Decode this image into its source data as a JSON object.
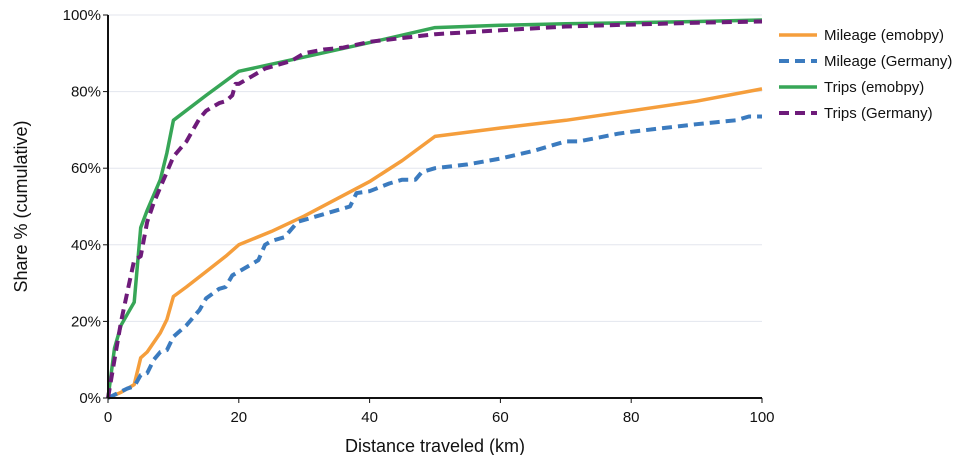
{
  "chart_data": {
    "type": "line",
    "title": "",
    "xlabel": "Distance traveled (km)",
    "ylabel": "Share % (cumulative)",
    "xlim": [
      0,
      100
    ],
    "ylim": [
      0,
      100
    ],
    "xticks": [
      0,
      20,
      40,
      60,
      80,
      100
    ],
    "xtick_labels": [
      "0",
      "20",
      "40",
      "60",
      "80",
      "100"
    ],
    "yticks": [
      0,
      20,
      40,
      60,
      80,
      100
    ],
    "ytick_labels": [
      "0%",
      "20%",
      "40%",
      "60%",
      "80%",
      "100%"
    ],
    "grid": "horizontal",
    "legend_position": "top-right, outside plot",
    "series": [
      {
        "name": "Mileage (emobpy)",
        "color": "#f59e3c",
        "dash": "solid",
        "points": [
          [
            0,
            0
          ],
          [
            2,
            1.5
          ],
          [
            4,
            3.5
          ],
          [
            5,
            10.5
          ],
          [
            6,
            12
          ],
          [
            8,
            17
          ],
          [
            9,
            20.5
          ],
          [
            10,
            26.5
          ],
          [
            12,
            29
          ],
          [
            15,
            33
          ],
          [
            18,
            37
          ],
          [
            20,
            40
          ],
          [
            25,
            43.5
          ],
          [
            30,
            47.5
          ],
          [
            35,
            52
          ],
          [
            40,
            56.5
          ],
          [
            45,
            62
          ],
          [
            50,
            68.3
          ],
          [
            60,
            70.5
          ],
          [
            70,
            72.5
          ],
          [
            80,
            75
          ],
          [
            90,
            77.5
          ],
          [
            100,
            80.7
          ]
        ]
      },
      {
        "name": "Mileage (Germany)",
        "color": "#3b7bbf",
        "dash": "dashed",
        "points": [
          [
            0,
            0
          ],
          [
            3,
            2.5
          ],
          [
            4,
            3
          ],
          [
            5,
            6
          ],
          [
            6,
            6.5
          ],
          [
            7,
            10
          ],
          [
            8,
            12
          ],
          [
            9,
            12.5
          ],
          [
            10,
            16
          ],
          [
            12,
            19
          ],
          [
            13,
            21
          ],
          [
            14,
            23
          ],
          [
            15,
            26
          ],
          [
            17,
            28.5
          ],
          [
            18,
            29
          ],
          [
            19,
            32
          ],
          [
            20,
            33
          ],
          [
            22,
            35
          ],
          [
            23,
            36
          ],
          [
            24,
            40
          ],
          [
            25,
            41
          ],
          [
            27,
            42
          ],
          [
            29,
            46
          ],
          [
            31,
            47
          ],
          [
            33,
            48
          ],
          [
            35,
            49
          ],
          [
            37,
            50
          ],
          [
            38,
            53.5
          ],
          [
            40,
            54
          ],
          [
            43,
            56
          ],
          [
            45,
            57
          ],
          [
            47,
            57
          ],
          [
            48,
            59
          ],
          [
            50,
            60
          ],
          [
            55,
            61
          ],
          [
            60,
            62.5
          ],
          [
            65,
            64.5
          ],
          [
            68,
            66
          ],
          [
            70,
            67
          ],
          [
            72,
            67
          ],
          [
            75,
            68
          ],
          [
            78,
            69
          ],
          [
            80,
            69.5
          ],
          [
            85,
            70.5
          ],
          [
            90,
            71.5
          ],
          [
            93,
            72
          ],
          [
            96,
            72.5
          ],
          [
            98,
            73.5
          ],
          [
            100,
            73.5
          ]
        ]
      },
      {
        "name": "Trips (emobpy)",
        "color": "#37a657",
        "dash": "solid",
        "points": [
          [
            0,
            0
          ],
          [
            1,
            13
          ],
          [
            2,
            19
          ],
          [
            3,
            22
          ],
          [
            4,
            25
          ],
          [
            5,
            44.5
          ],
          [
            6,
            49
          ],
          [
            8,
            57
          ],
          [
            9,
            64
          ],
          [
            10,
            72.5
          ],
          [
            15,
            79
          ],
          [
            20,
            85.3
          ],
          [
            30,
            89
          ],
          [
            40,
            92.8
          ],
          [
            50,
            96.7
          ],
          [
            60,
            97.3
          ],
          [
            70,
            97.7
          ],
          [
            80,
            98
          ],
          [
            90,
            98.3
          ],
          [
            100,
            98.7
          ]
        ]
      },
      {
        "name": "Trips (Germany)",
        "color": "#6e1b7a",
        "dash": "dashed",
        "points": [
          [
            0,
            0
          ],
          [
            1,
            10
          ],
          [
            2,
            20
          ],
          [
            3,
            28
          ],
          [
            4,
            36
          ],
          [
            5,
            37
          ],
          [
            6,
            46
          ],
          [
            7,
            51
          ],
          [
            8,
            55
          ],
          [
            9,
            59
          ],
          [
            10,
            63
          ],
          [
            11,
            65
          ],
          [
            12,
            67
          ],
          [
            13,
            70
          ],
          [
            14,
            73
          ],
          [
            15,
            75
          ],
          [
            16,
            76
          ],
          [
            17,
            77
          ],
          [
            18,
            77.5
          ],
          [
            19,
            79
          ],
          [
            19.5,
            82
          ],
          [
            20,
            82
          ],
          [
            21,
            83
          ],
          [
            22,
            84
          ],
          [
            24,
            86
          ],
          [
            26,
            87
          ],
          [
            28,
            88
          ],
          [
            30,
            90
          ],
          [
            33,
            91
          ],
          [
            36,
            91.5
          ],
          [
            40,
            93
          ],
          [
            45,
            94
          ],
          [
            50,
            95
          ],
          [
            60,
            96
          ],
          [
            70,
            97
          ],
          [
            80,
            97.5
          ],
          [
            90,
            98
          ],
          [
            100,
            98.3
          ]
        ]
      }
    ]
  }
}
